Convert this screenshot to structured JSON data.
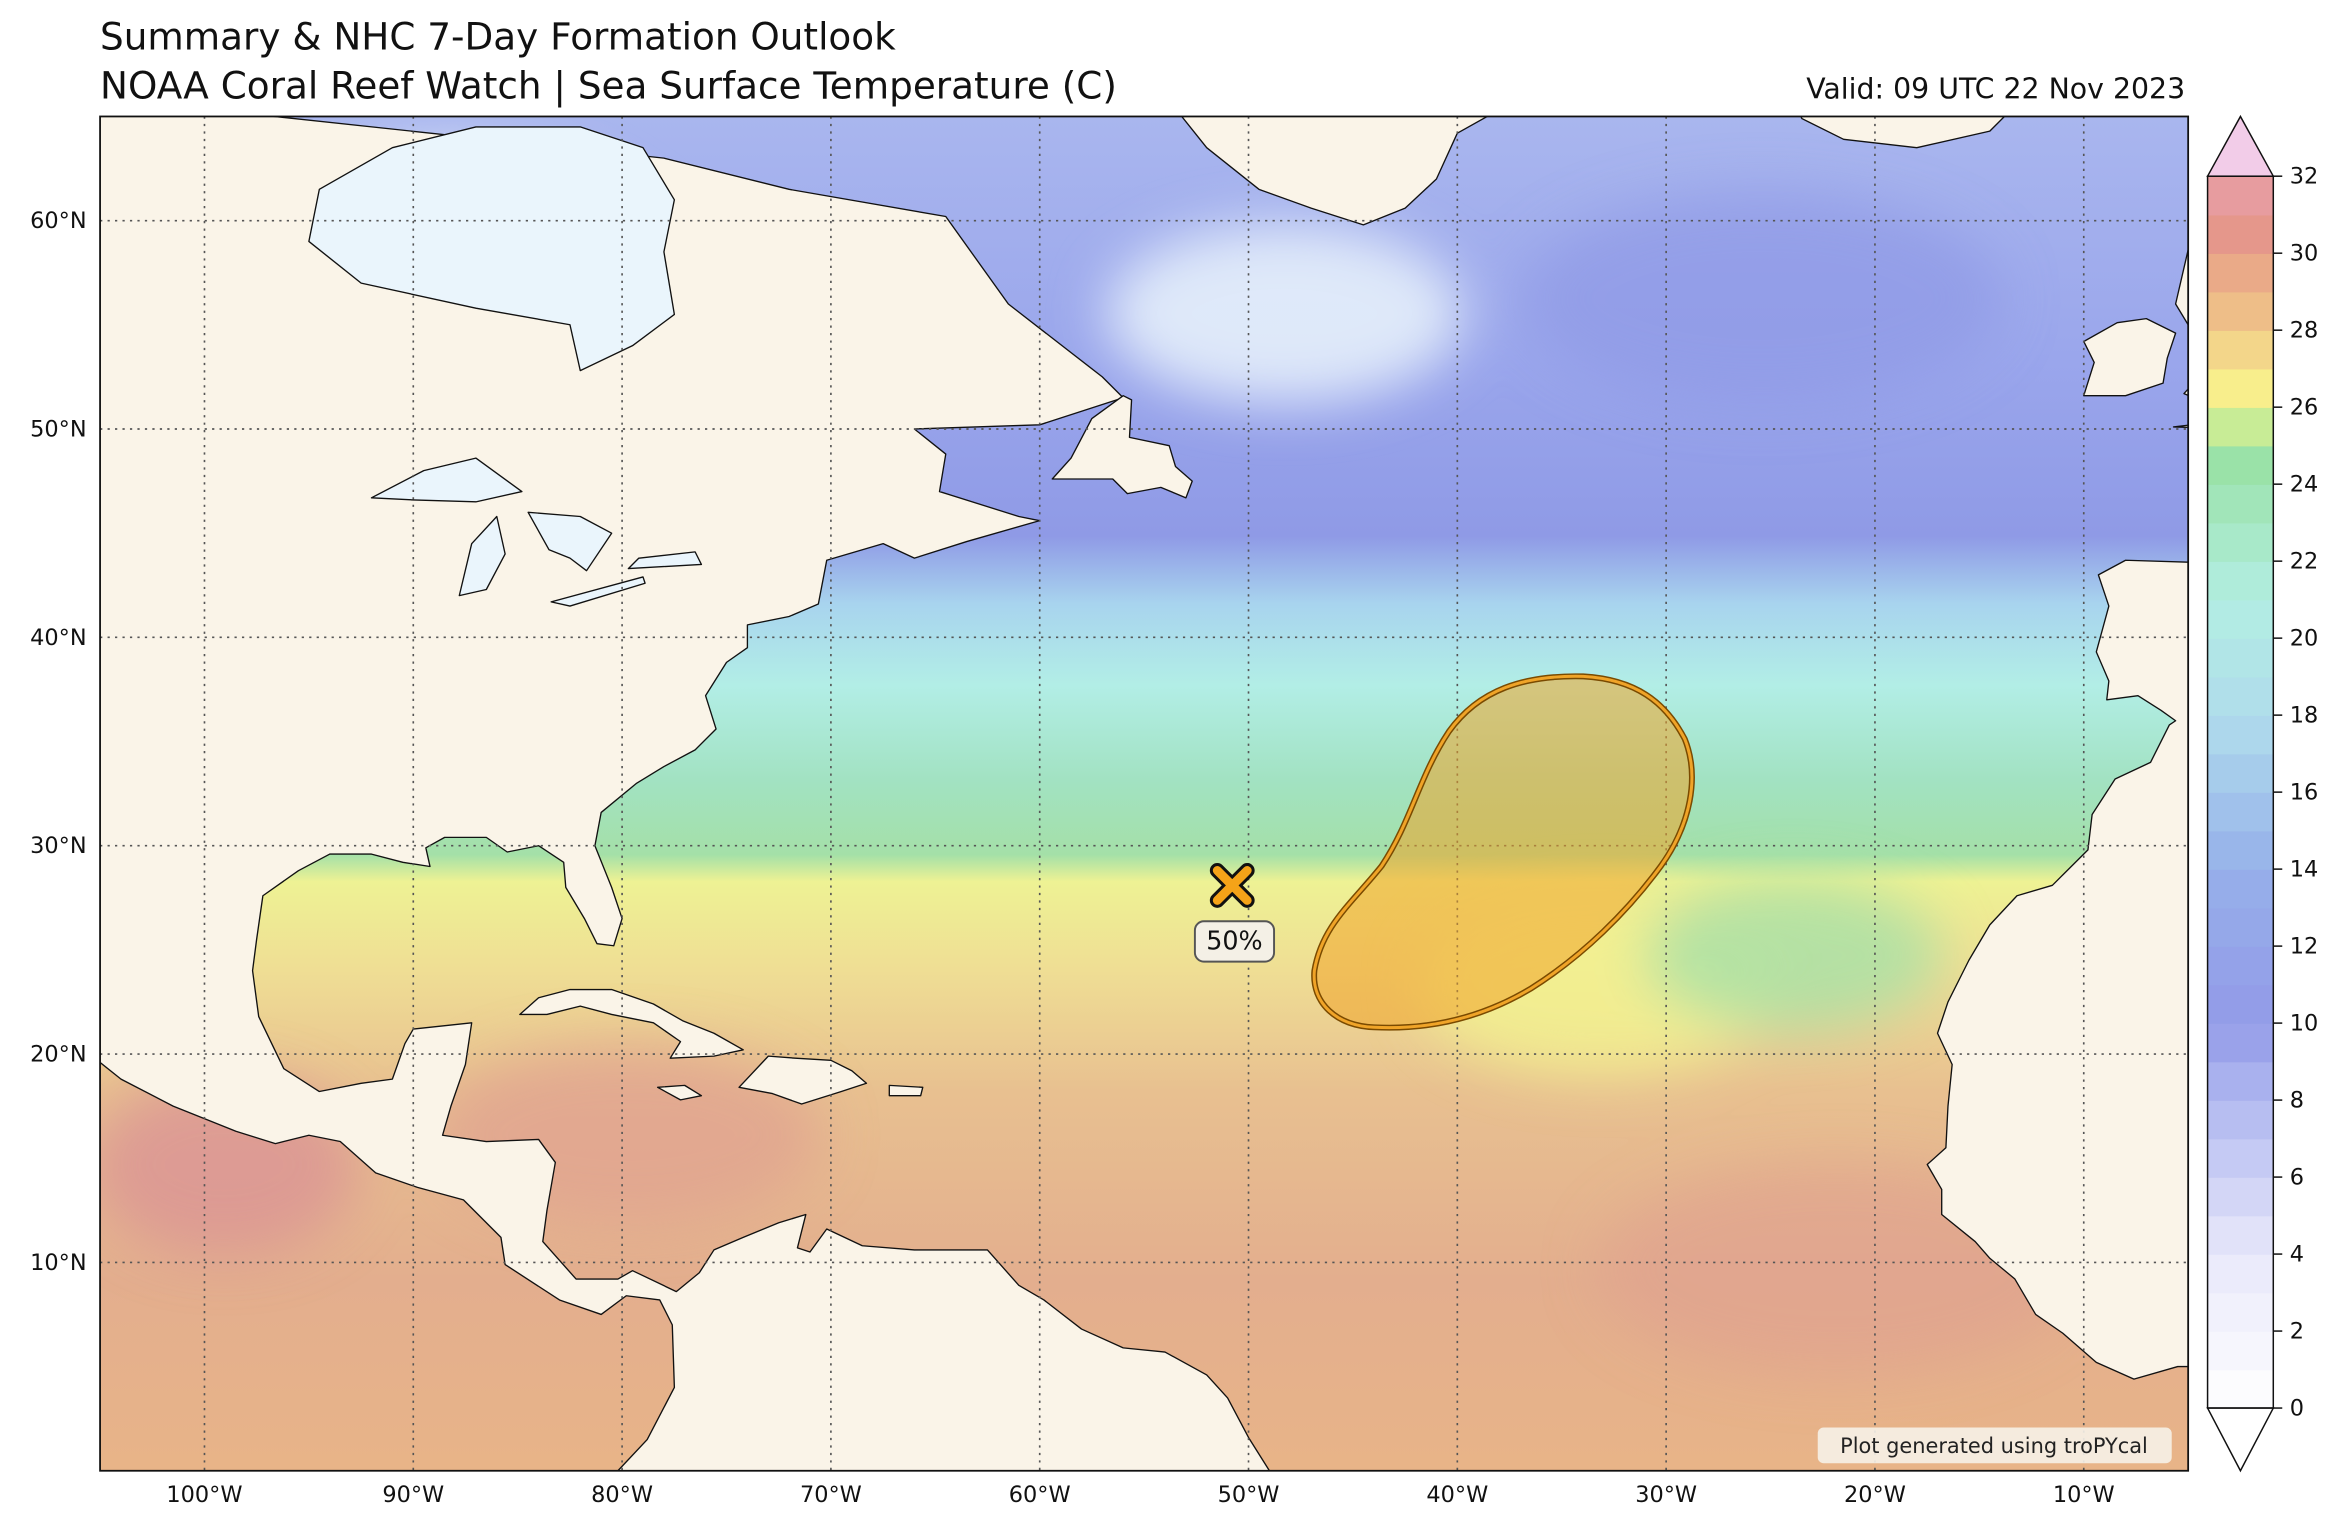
{
  "header": {
    "title": "Summary & NHC 7-Day Formation Outlook",
    "subtitle": "NOAA Coral Reef Watch | Sea Surface Temperature (C)",
    "valid": "Valid: 09 UTC 22 Nov 2023"
  },
  "map": {
    "xlim": [
      -105,
      -5
    ],
    "ylim": [
      0,
      65
    ],
    "lon_ticks": [
      {
        "value": -100,
        "label": "100°W"
      },
      {
        "value": -90,
        "label": "90°W"
      },
      {
        "value": -80,
        "label": "80°W"
      },
      {
        "value": -70,
        "label": "70°W"
      },
      {
        "value": -60,
        "label": "60°W"
      },
      {
        "value": -50,
        "label": "50°W"
      },
      {
        "value": -40,
        "label": "40°W"
      },
      {
        "value": -30,
        "label": "30°W"
      },
      {
        "value": -20,
        "label": "20°W"
      },
      {
        "value": -10,
        "label": "10°W"
      }
    ],
    "lat_ticks": [
      {
        "value": 10,
        "label": "10°N"
      },
      {
        "value": 20,
        "label": "20°N"
      },
      {
        "value": 30,
        "label": "30°N"
      },
      {
        "value": 40,
        "label": "40°N"
      },
      {
        "value": 50,
        "label": "50°N"
      },
      {
        "value": 60,
        "label": "60°N"
      }
    ],
    "outlook": {
      "label": "50%"
    },
    "credit": "Plot generated using troPYcal"
  },
  "colorbar": {
    "clim": [
      0,
      32
    ],
    "ticks": [
      0,
      2,
      4,
      6,
      8,
      10,
      12,
      14,
      16,
      18,
      20,
      22,
      24,
      26,
      28,
      30,
      32
    ]
  }
}
